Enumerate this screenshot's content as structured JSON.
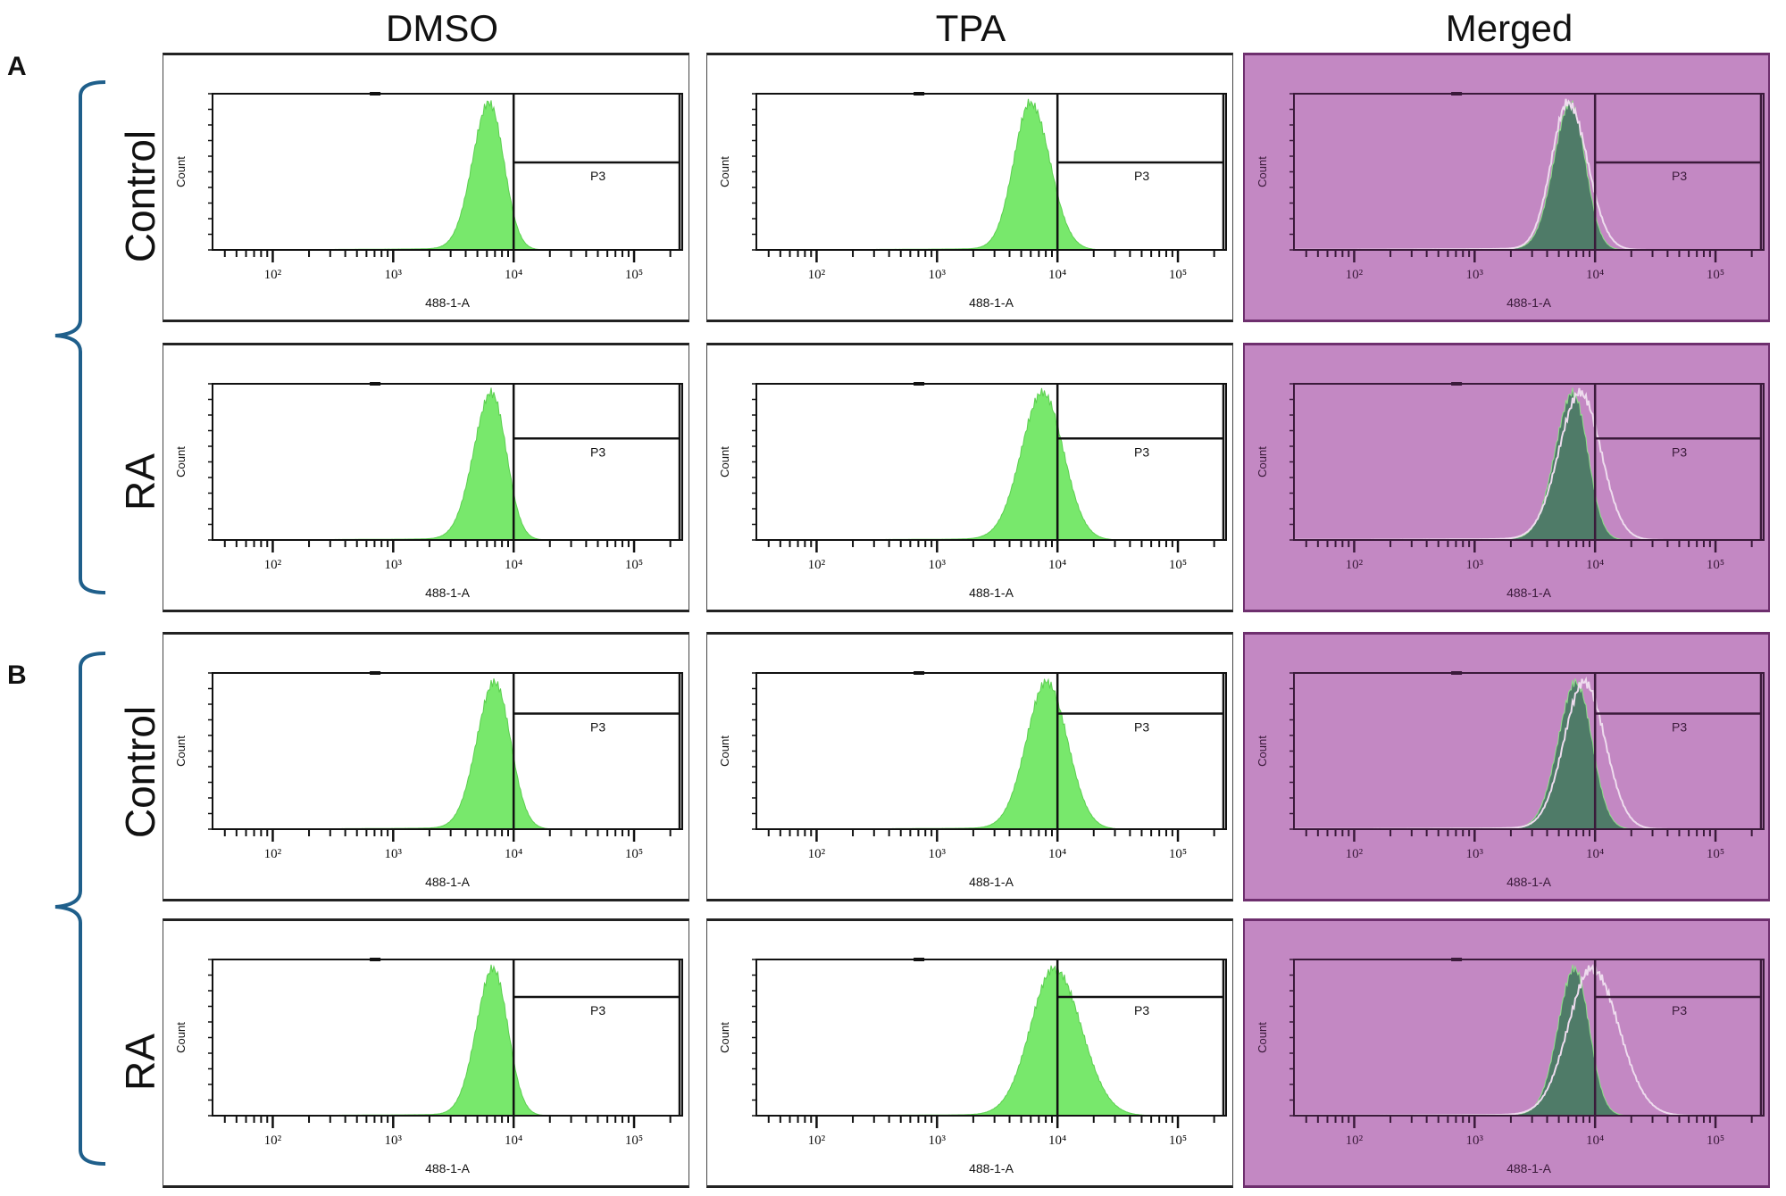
{
  "columns": [
    "DMSO",
    "TPA",
    "Merged"
  ],
  "groups": [
    "A",
    "B"
  ],
  "rows": [
    "Control",
    "RA",
    "Control",
    "RA"
  ],
  "colors": {
    "histogram_fill": "#78e86c",
    "merged_background": "#c388c3",
    "merged_dmso_fill": "#4f7b68",
    "merged_tpa_outline": "#eedcee",
    "brace": "#1f5f8b"
  },
  "chart_data": {
    "type": "area",
    "subtype": "flow-cytometry-histogram",
    "x_scale": "log",
    "xlim_log10": [
      1.5,
      5.4
    ],
    "x_ticks": [
      {
        "value": 100,
        "label": "10²"
      },
      {
        "value": 1000,
        "label": "10³"
      },
      {
        "value": 10000,
        "label": "10⁴"
      },
      {
        "value": 100000,
        "label": "10⁵"
      }
    ],
    "xlabel": "488-1-A",
    "ylabel": "Count",
    "gate": {
      "label": "P3",
      "x_min": 10000
    },
    "panels": [
      {
        "group": "A",
        "row": "Control",
        "column": "DMSO",
        "peak": 6300,
        "spread_decades": [
          0.14,
          0.12
        ],
        "gate_y_fraction": 0.56
      },
      {
        "group": "A",
        "row": "Control",
        "column": "TPA",
        "peak": 6000,
        "spread_decades": [
          0.14,
          0.16
        ],
        "gate_y_fraction": 0.56
      },
      {
        "group": "A",
        "row": "RA",
        "column": "DMSO",
        "peak": 6600,
        "spread_decades": [
          0.15,
          0.12
        ],
        "gate_y_fraction": 0.64
      },
      {
        "group": "A",
        "row": "RA",
        "column": "TPA",
        "peak": 7600,
        "spread_decades": [
          0.18,
          0.17
        ],
        "gate_y_fraction": 0.65
      },
      {
        "group": "B",
        "row": "Control",
        "column": "DMSO",
        "peak": 7000,
        "spread_decades": [
          0.15,
          0.13
        ],
        "gate_y_fraction": 0.77
      },
      {
        "group": "B",
        "row": "Control",
        "column": "TPA",
        "peak": 8200,
        "spread_decades": [
          0.17,
          0.17
        ],
        "gate_y_fraction": 0.74
      },
      {
        "group": "B",
        "row": "RA",
        "column": "DMSO",
        "peak": 6800,
        "spread_decades": [
          0.14,
          0.12
        ],
        "gate_y_fraction": 0.84
      },
      {
        "group": "B",
        "row": "RA",
        "column": "TPA",
        "peak": 9500,
        "spread_decades": [
          0.2,
          0.22
        ],
        "gate_y_fraction": 0.76
      }
    ]
  }
}
